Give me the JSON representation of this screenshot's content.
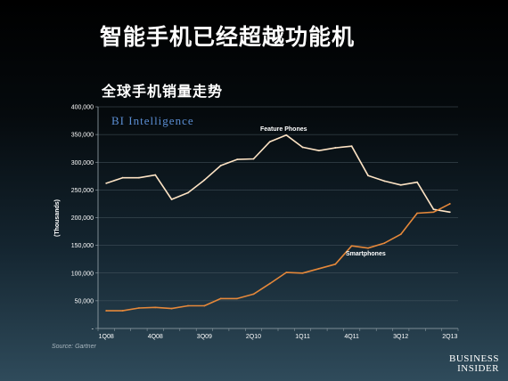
{
  "slide": {
    "title": "智能手机已经超越功能机",
    "source": "Source: Gartner",
    "brand_line1": "BUSINESS",
    "brand_line2": "INSIDER"
  },
  "chart_data": {
    "type": "line",
    "title": "全球手机销量走势",
    "watermark": "BI Intelligence",
    "ylabel": "(Thousands)",
    "xlabel": "",
    "ylim": [
      0,
      400000
    ],
    "yticks": [
      "-",
      "50,000",
      "100,000",
      "150,000",
      "200,000",
      "250,000",
      "300,000",
      "350,000",
      "400,000"
    ],
    "grid": true,
    "x": [
      "1Q08",
      "2Q08",
      "3Q08",
      "4Q08",
      "1Q09",
      "2Q09",
      "3Q09",
      "4Q09",
      "1Q10",
      "2Q10",
      "3Q10",
      "4Q10",
      "1Q11",
      "2Q11",
      "3Q11",
      "4Q11",
      "1Q12",
      "2Q12",
      "3Q12",
      "4Q12",
      "1Q13",
      "2Q13"
    ],
    "xtick_labels": [
      "1Q08",
      "4Q08",
      "3Q09",
      "2Q10",
      "1Q11",
      "4Q11",
      "3Q12",
      "2Q13"
    ],
    "series": [
      {
        "name": "Feature Phones",
        "color": "#fde3c4",
        "values": [
          262000,
          272000,
          272000,
          277000,
          233000,
          245000,
          268000,
          294000,
          305000,
          306000,
          337000,
          349000,
          327000,
          321000,
          326000,
          329000,
          276000,
          266000,
          259000,
          264000,
          215000,
          210000
        ]
      },
      {
        "name": "Smartphones",
        "color": "#e5883a",
        "values": [
          32000,
          32000,
          37000,
          38000,
          36000,
          41000,
          41000,
          54000,
          54000,
          62000,
          81000,
          101000,
          100000,
          108000,
          116000,
          149000,
          145000,
          154000,
          170000,
          208000,
          210000,
          225000
        ]
      }
    ],
    "annotations": {
      "feature": "Feature Phones",
      "smart": "Smartphones"
    }
  }
}
